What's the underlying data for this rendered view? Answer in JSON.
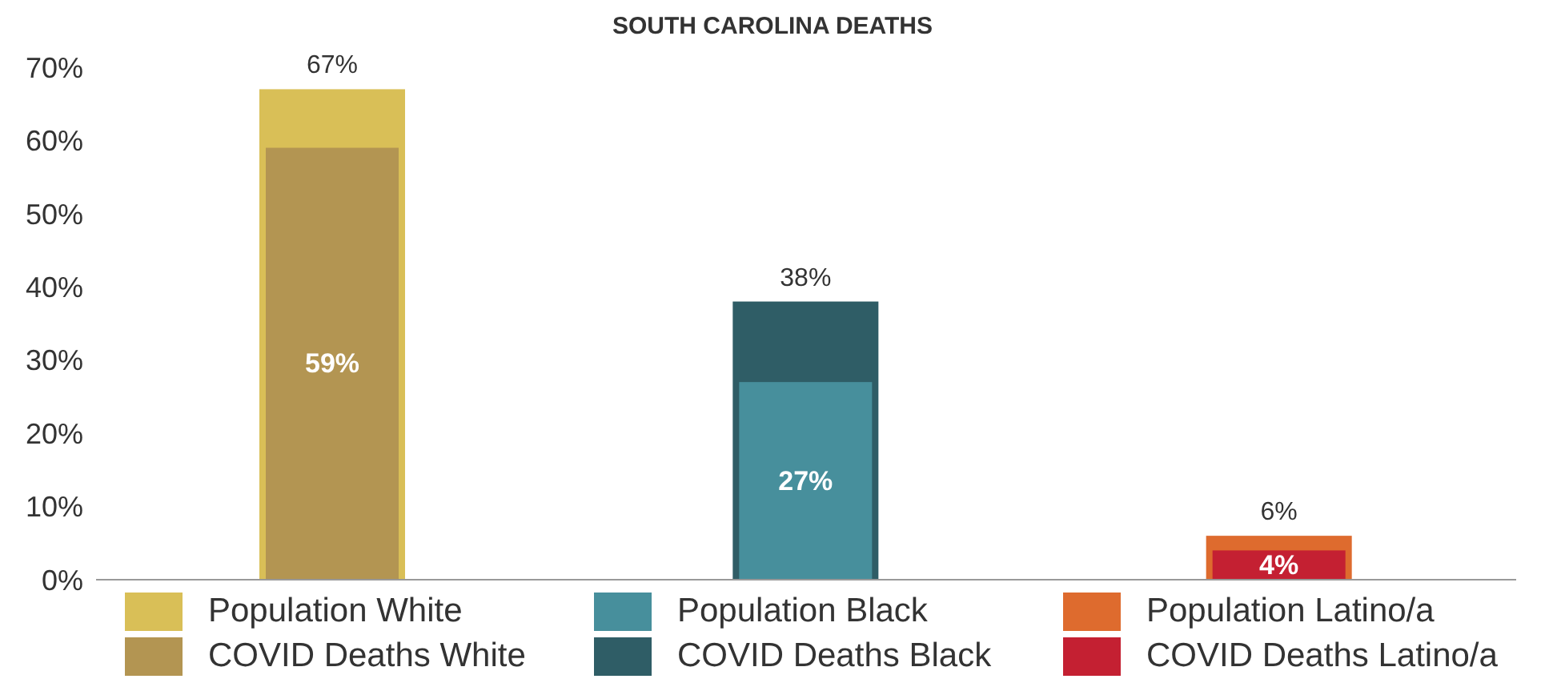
{
  "chart_data": {
    "type": "bar",
    "title": "SOUTH CAROLINA DEATHS",
    "categories": [
      null,
      null,
      null
    ],
    "series": [
      {
        "name": "Population White",
        "color": "#d9bf57",
        "values": [
          67,
          null,
          null
        ],
        "value_labels": [
          "67%",
          null,
          null
        ]
      },
      {
        "name": "COVID Deaths White",
        "color": "#b39552",
        "values": [
          59,
          null,
          null
        ],
        "value_labels": [
          "59%",
          null,
          null
        ]
      },
      {
        "name": "Population Black",
        "color": "#478f9c",
        "values": [
          null,
          27,
          null
        ],
        "value_labels": [
          null,
          "27%",
          null
        ]
      },
      {
        "name": "COVID Deaths Black",
        "color": "#2f5d66",
        "values": [
          null,
          38,
          null
        ],
        "value_labels": [
          null,
          "38%",
          null
        ]
      },
      {
        "name": "Population Latino/a",
        "color": "#de6b2e",
        "values": [
          null,
          null,
          6
        ],
        "value_labels": [
          null,
          null,
          "6%"
        ]
      },
      {
        "name": "COVID Deaths Latino/a",
        "color": "#c42032",
        "values": [
          null,
          null,
          4
        ],
        "value_labels": [
          null,
          null,
          "4%"
        ]
      }
    ],
    "ylim": [
      0,
      70
    ],
    "yticks": [
      {
        "value": 0,
        "label": "0%"
      },
      {
        "value": 10,
        "label": "10%"
      },
      {
        "value": 20,
        "label": "20%"
      },
      {
        "value": 30,
        "label": "30%"
      },
      {
        "value": 40,
        "label": "40%"
      },
      {
        "value": 50,
        "label": "50%"
      },
      {
        "value": 60,
        "label": "60%"
      },
      {
        "value": 70,
        "label": "70%"
      }
    ],
    "grid": false,
    "legend": "bottom"
  }
}
